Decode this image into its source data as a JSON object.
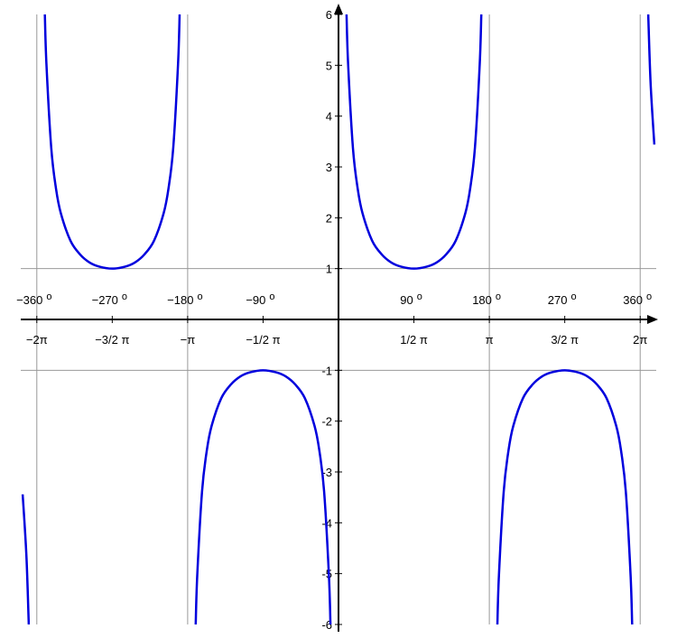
{
  "chart_data": {
    "type": "line",
    "xlim": [
      -6.58,
      6.58
    ],
    "ylim": [
      -6,
      6
    ],
    "xticks": [
      {
        "value": -6.2832,
        "label": "−2π"
      },
      {
        "value": -4.7124,
        "label": "−3/2 π"
      },
      {
        "value": -3.1416,
        "label": "−π"
      },
      {
        "value": -1.5708,
        "label": "−1/2 π"
      },
      {
        "value": 1.5708,
        "label": "1/2 π"
      },
      {
        "value": 3.1416,
        "label": "π"
      },
      {
        "value": 4.7124,
        "label": "3/2 π"
      },
      {
        "value": 6.2832,
        "label": "2π"
      }
    ],
    "xticks_degrees": [
      {
        "value": -6.2832,
        "label": "−360"
      },
      {
        "value": -4.7124,
        "label": "−270"
      },
      {
        "value": -3.1416,
        "label": "−180"
      },
      {
        "value": -1.5708,
        "label": "−90"
      },
      {
        "value": 1.5708,
        "label": "90"
      },
      {
        "value": 3.1416,
        "label": "180"
      },
      {
        "value": 4.7124,
        "label": "270"
      },
      {
        "value": 6.2832,
        "label": "360"
      }
    ],
    "degree_symbol": "o",
    "yticks": [
      -6,
      -5,
      -4,
      -3,
      -2,
      -1,
      1,
      2,
      3,
      4,
      5,
      6
    ],
    "xgrid": [
      -6.2832,
      -3.1416,
      3.1416,
      6.2832
    ],
    "ygrid": [
      -1,
      1
    ],
    "x": [
      -6.578,
      -6.5,
      -6.4508,
      -6.2832,
      -6.1158,
      -6.0832,
      -5.9832,
      -5.8832,
      -5.7832,
      -5.5832,
      -5.3832,
      -5.1832,
      -4.9832,
      -4.7124,
      -4.4416,
      -4.2416,
      -4.0416,
      -3.8416,
      -3.6416,
      -3.5416,
      -3.4416,
      -3.3416,
      -3.309,
      -3.1416,
      -2.9742,
      -2.9416,
      -2.8416,
      -2.7416,
      -2.6416,
      -2.4416,
      -2.2416,
      -2.0416,
      -1.8416,
      -1.5708,
      -1.3,
      -1.1,
      -0.9,
      -0.7,
      -0.5,
      -0.4,
      -0.3,
      -0.2,
      -0.1674,
      0,
      0.1674,
      0.2,
      0.3,
      0.4,
      0.5,
      0.7,
      0.9,
      1.1,
      1.3,
      1.5708,
      1.8416,
      2.0416,
      2.2416,
      2.4416,
      2.6416,
      2.7416,
      2.8416,
      2.9416,
      2.9742,
      3.1416,
      3.309,
      3.3416,
      3.4416,
      3.5416,
      3.6416,
      3.8416,
      4.0416,
      4.2416,
      4.4416,
      4.7124,
      4.9832,
      5.1832,
      5.3832,
      5.5832,
      5.7832,
      5.8832,
      5.9832,
      6.0832,
      6.1158,
      6.2832,
      6.4508,
      6.5,
      6.578
    ],
    "series": [
      {
        "color": "#0000dd",
        "values": [
          -3.44,
          -4.65,
          -6,
          null,
          6,
          5.03,
          3.38,
          2.57,
          2.09,
          1.55,
          1.28,
          1.12,
          1.04,
          1,
          1.04,
          1.12,
          1.28,
          1.55,
          2.09,
          2.57,
          3.38,
          5.03,
          6,
          null,
          -6,
          -5.03,
          -3.38,
          -2.57,
          -2.09,
          -1.55,
          -1.28,
          -1.12,
          -1.04,
          -1,
          -1.04,
          -1.12,
          -1.28,
          -1.55,
          -2.09,
          -2.57,
          -3.38,
          -5.03,
          -6,
          null,
          6,
          5.03,
          3.38,
          2.57,
          2.09,
          1.55,
          1.28,
          1.12,
          1.04,
          1,
          1.04,
          1.12,
          1.28,
          1.55,
          2.09,
          2.57,
          3.38,
          5.03,
          6,
          null,
          -6,
          -5.03,
          -3.38,
          -2.57,
          -2.09,
          -1.55,
          -1.28,
          -1.12,
          -1.04,
          -1,
          -1.04,
          -1.12,
          -1.28,
          -1.55,
          -2.09,
          -2.57,
          -3.38,
          -5.03,
          -6,
          null,
          6,
          4.65,
          3.44
        ]
      }
    ]
  }
}
